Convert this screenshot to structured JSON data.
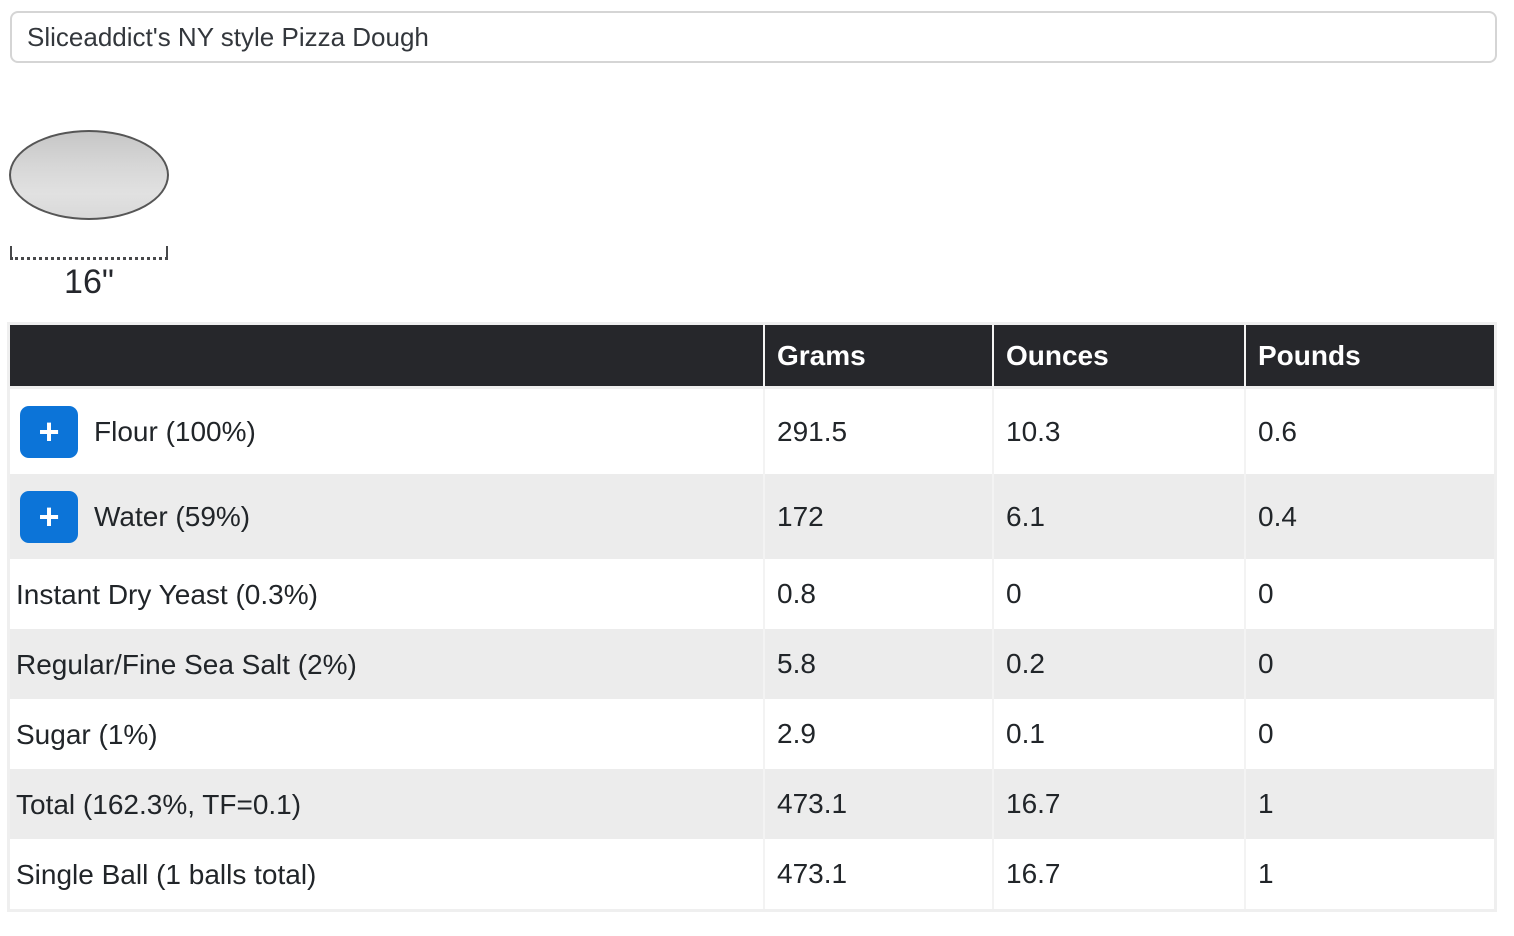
{
  "recipe_name_input": {
    "value": "Sliceaddict's NY style Pizza Dough"
  },
  "preview": {
    "diameter_label": "16\""
  },
  "table": {
    "columns": [
      "",
      "Grams",
      "Ounces",
      "Pounds"
    ],
    "column_keys": [
      "ingredient",
      "grams",
      "ounces",
      "pounds"
    ],
    "add_button_label": "+",
    "rows": [
      {
        "label": "Flour (100%)",
        "has_add_button": true,
        "grams": "291.5",
        "ounces": "10.3",
        "pounds": "0.6"
      },
      {
        "label": "Water (59%)",
        "has_add_button": true,
        "grams": "172",
        "ounces": "6.1",
        "pounds": "0.4"
      },
      {
        "label": "Instant Dry Yeast (0.3%)",
        "has_add_button": false,
        "grams": "0.8",
        "ounces": "0",
        "pounds": "0"
      },
      {
        "label": "Regular/Fine Sea Salt (2%)",
        "has_add_button": false,
        "grams": "5.8",
        "ounces": "0.2",
        "pounds": "0"
      },
      {
        "label": "Sugar (1%)",
        "has_add_button": false,
        "grams": "2.9",
        "ounces": "0.1",
        "pounds": "0"
      },
      {
        "label": "Total (162.3%, TF=0.1)",
        "has_add_button": false,
        "grams": "473.1",
        "ounces": "16.7",
        "pounds": "1"
      },
      {
        "label": "Single Ball (1 balls total)",
        "has_add_button": false,
        "grams": "473.1",
        "ounces": "16.7",
        "pounds": "1"
      }
    ]
  },
  "colors": {
    "accent_blue": "#0c74d8",
    "header_bg": "#26272b",
    "stripe": "#ececec",
    "text": "#212529"
  }
}
